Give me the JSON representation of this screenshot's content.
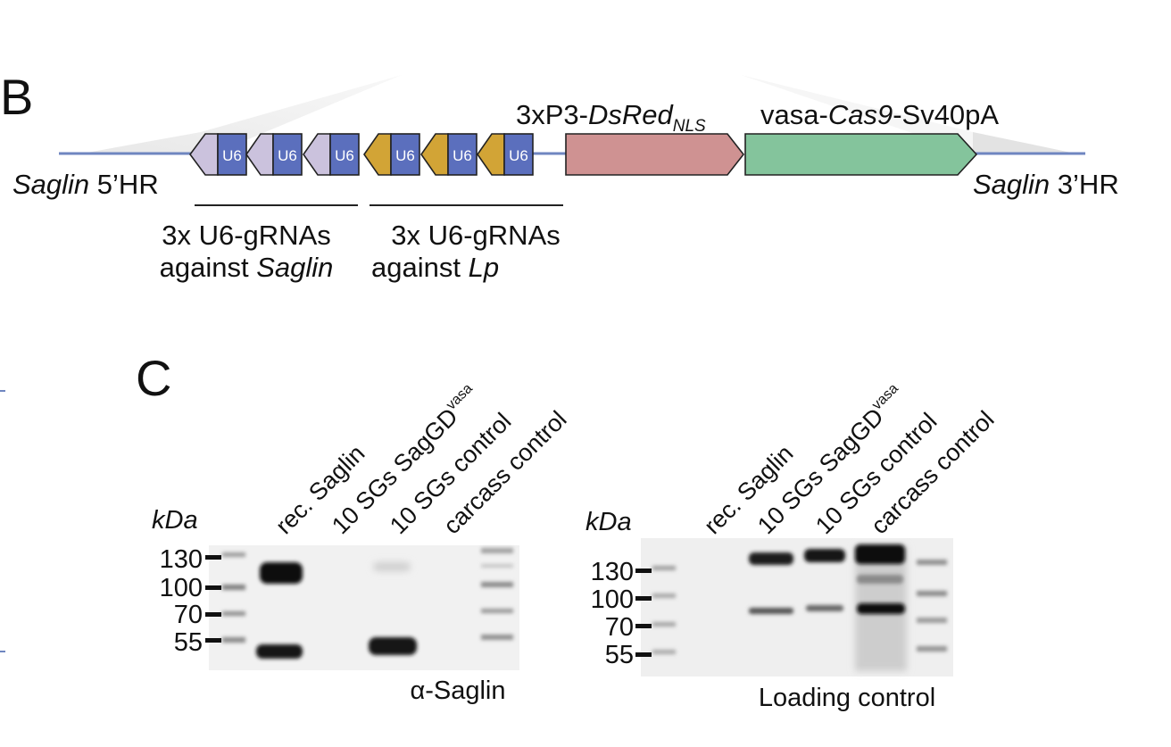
{
  "panelB": {
    "label": "B",
    "five_hr": {
      "gene": "Saglin",
      "suffix": " 5’HR"
    },
    "three_hr": {
      "gene": "Saglin",
      "suffix": " 3’HR"
    },
    "u6_label": "U6",
    "dsred": {
      "prefix": "3xP3-",
      "gene": "DsRed",
      "sub": "NLS"
    },
    "cas9": {
      "prefix": "vasa-",
      "gene": "Cas9",
      "suffix": "-Sv40pA"
    },
    "group1": {
      "line1": "3x U6-gRNAs",
      "line2_prefix": "against ",
      "line2_italic": "Saglin"
    },
    "group2": {
      "line1": "3x U6-gRNAs",
      "line2_prefix": "against ",
      "line2_italic": "Lp"
    },
    "colors": {
      "backbone": "#6f86c0",
      "u6_box": "#5b6fbd",
      "saglin_arrow": "#cbc2dd",
      "lp_arrow": "#d2a436",
      "dsred_box": "#cf9292",
      "cas9_box": "#84c49c",
      "homology_shade": "#d4d4d4"
    }
  },
  "panelC": {
    "label": "C",
    "blot1": {
      "kda_label": "kDa",
      "markers": [
        "130",
        "100",
        "70",
        "55"
      ],
      "lanes": [
        "rec. Saglin",
        "10 SGs SagGD",
        "10 SGs control",
        "carcass control"
      ],
      "lane2_superscript": "vasa",
      "caption": "α-Saglin"
    },
    "blot2": {
      "kda_label": "kDa",
      "markers": [
        "130",
        "100",
        "70",
        "55"
      ],
      "lanes": [
        "rec. Saglin",
        "10 SGs SagGD",
        "10 SGs control",
        "carcass control"
      ],
      "lane2_superscript": "vasa",
      "caption": "Loading control"
    }
  }
}
